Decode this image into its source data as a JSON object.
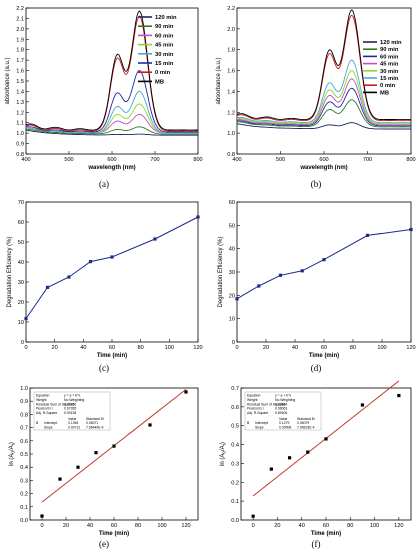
{
  "chart_data": [
    {
      "panel": "(a)",
      "type": "line",
      "xlabel": "wavelength (nm)",
      "ylabel": "absorbance (a.u.)",
      "xlim": [
        400,
        800
      ],
      "ylim": [
        0.8,
        2.2
      ],
      "xticks": [
        400,
        500,
        600,
        700,
        800
      ],
      "yticks": [
        0.8,
        0.9,
        1.0,
        1.1,
        1.2,
        1.3,
        1.4,
        1.5,
        1.6,
        1.7,
        1.8,
        1.9,
        2.0,
        2.1,
        2.2
      ],
      "legend_position": "top-right",
      "series": [
        {
          "name": "120 min",
          "color": "#222266",
          "baseline": 0.98,
          "peak": 0.99
        },
        {
          "name": "90 min",
          "color": "#2e7d1b",
          "baseline": 0.99,
          "peak": 1.06
        },
        {
          "name": "60 min",
          "color": "#c050c8",
          "baseline": 1.0,
          "peak": 1.18
        },
        {
          "name": "45 min",
          "color": "#8fd61c",
          "baseline": 1.0,
          "peak": 1.28
        },
        {
          "name": "30 min",
          "color": "#48a8d8",
          "baseline": 1.0,
          "peak": 1.4
        },
        {
          "name": "15 min",
          "color": "#1a2aa0",
          "baseline": 1.01,
          "peak": 1.6
        },
        {
          "name": "0 min",
          "color": "#d01818",
          "baseline": 1.02,
          "peak": 2.12
        },
        {
          "name": "MB",
          "color": "#000000",
          "baseline": 1.03,
          "peak": 2.17
        }
      ]
    },
    {
      "panel": "(b)",
      "type": "line",
      "xlabel": "wavelength (nm)",
      "ylabel": "absorbance (a.u.)",
      "xlim": [
        400,
        800
      ],
      "ylim": [
        0.8,
        2.2
      ],
      "xticks": [
        400,
        500,
        600,
        700,
        800
      ],
      "yticks": [
        0.8,
        1.0,
        1.2,
        1.4,
        1.6,
        1.8,
        2.0,
        2.2
      ],
      "legend_position": "right",
      "series": [
        {
          "name": "120 min",
          "color": "#222266",
          "baseline": 1.04,
          "peak": 1.1
        },
        {
          "name": "90 min",
          "color": "#2e7d1b",
          "baseline": 1.06,
          "peak": 1.32
        },
        {
          "name": "60 min",
          "color": "#1a2aa0",
          "baseline": 1.07,
          "peak": 1.43
        },
        {
          "name": "45 min",
          "color": "#c050c8",
          "baseline": 1.08,
          "peak": 1.52
        },
        {
          "name": "30 min",
          "color": "#8fd61c",
          "baseline": 1.09,
          "peak": 1.6
        },
        {
          "name": "15 min",
          "color": "#48a8d8",
          "baseline": 1.1,
          "peak": 1.7
        },
        {
          "name": "0 min",
          "color": "#d01818",
          "baseline": 1.12,
          "peak": 2.13
        },
        {
          "name": "MB",
          "color": "#000000",
          "baseline": 1.13,
          "peak": 2.18
        }
      ]
    },
    {
      "panel": "(c)",
      "type": "line",
      "xlabel": "Time (min)",
      "ylabel": "Degradation Efficiency (%)",
      "xlim": [
        0,
        120
      ],
      "ylim": [
        0,
        70
      ],
      "xticks": [
        0,
        20,
        40,
        60,
        80,
        100,
        120
      ],
      "yticks": [
        0,
        10,
        20,
        30,
        40,
        50,
        60,
        70
      ],
      "color": "#1c2a8c",
      "x": [
        0,
        15,
        30,
        45,
        60,
        90,
        120
      ],
      "y": [
        11.7,
        27.3,
        32.5,
        40.2,
        42.5,
        51.5,
        62.5
      ]
    },
    {
      "panel": "(d)",
      "type": "line",
      "xlabel": "Time (min)",
      "ylabel": "Degradation Efficiency (%)",
      "xlim": [
        0,
        120
      ],
      "ylim": [
        0,
        60
      ],
      "xticks": [
        0,
        20,
        40,
        60,
        80,
        100,
        120
      ],
      "yticks": [
        0,
        10,
        20,
        30,
        40,
        50,
        60
      ],
      "color": "#1c2a8c",
      "x": [
        0,
        15,
        30,
        45,
        60,
        90,
        120
      ],
      "y": [
        18.5,
        24.0,
        28.6,
        30.5,
        35.3,
        45.7,
        48.2
      ]
    },
    {
      "panel": "(e)",
      "type": "scatter",
      "xlabel": "Time (min)",
      "ylabel": "ln (A0/At)",
      "xlim": [
        -10,
        130
      ],
      "ylim": [
        0.0,
        1.0
      ],
      "xticks": [
        0,
        20,
        40,
        60,
        80,
        100,
        120
      ],
      "yticks": [
        0.0,
        0.1,
        0.2,
        0.3,
        0.4,
        0.5,
        0.6,
        0.7,
        0.8,
        0.9,
        1.0
      ],
      "x": [
        0,
        15,
        30,
        45,
        60,
        90,
        120
      ],
      "y": [
        0.03,
        0.31,
        0.4,
        0.51,
        0.56,
        0.72,
        0.97
      ],
      "fit": {
        "intercept": 0.1354,
        "slope": 0.00712
      },
      "fit_table": [
        [
          "Equation",
          "y = a + b*x"
        ],
        [
          "Weight",
          "No Weighting"
        ],
        [
          "Residual Sum of Squares",
          "0.02260"
        ],
        [
          "Pearson's r",
          "0.97395"
        ],
        [
          "Adj. R-Square",
          "0.93138"
        ]
      ],
      "fit_params": [
        [
          "",
          "",
          "Value",
          "Standard Er"
        ],
        [
          "B",
          "Intercept",
          "0.1354",
          "0.06071"
        ],
        [
          "",
          "Slope",
          "0.00712",
          "7.96440E-4"
        ]
      ]
    },
    {
      "panel": "(f)",
      "type": "scatter",
      "xlabel": "Time (min)",
      "ylabel": "ln (A0/At)",
      "xlim": [
        -10,
        130
      ],
      "ylim": [
        0.0,
        0.7
      ],
      "xticks": [
        0,
        20,
        40,
        60,
        80,
        100,
        120
      ],
      "yticks": [
        0.0,
        0.1,
        0.2,
        0.3,
        0.4,
        0.5,
        0.6,
        0.7
      ],
      "x": [
        0,
        15,
        30,
        45,
        60,
        90,
        120
      ],
      "y": [
        0.02,
        0.27,
        0.33,
        0.36,
        0.43,
        0.61,
        0.66
      ],
      "fit": {
        "intercept": 0.1279,
        "slope": 0.00508
      },
      "fit_table": [
        [
          "Equation",
          "y = a + b*x"
        ],
        [
          "Weight",
          "No Weighting"
        ],
        [
          "Residual Sum of Squares",
          "0.03864"
        ],
        [
          "Pearson's r",
          "0.96063"
        ],
        [
          "Adj. R-Square",
          "0.89406"
        ]
      ],
      "fit_params": [
        [
          "",
          "",
          "Value",
          "Standard Er"
        ],
        [
          "B",
          "Intercept",
          "0.1279",
          "0.06079"
        ],
        [
          "",
          "Slope",
          "0.00508",
          "7.99615E-4"
        ]
      ]
    }
  ],
  "captions": [
    "(a)",
    "(b)",
    "(c)",
    "(d)",
    "(e)",
    "(f)"
  ],
  "ylabel_e_main": "ln (A",
  "ylabel_e_sub0": "0",
  "ylabel_e_mid": "/A",
  "ylabel_e_subt": "t",
  "ylabel_e_end": ")"
}
